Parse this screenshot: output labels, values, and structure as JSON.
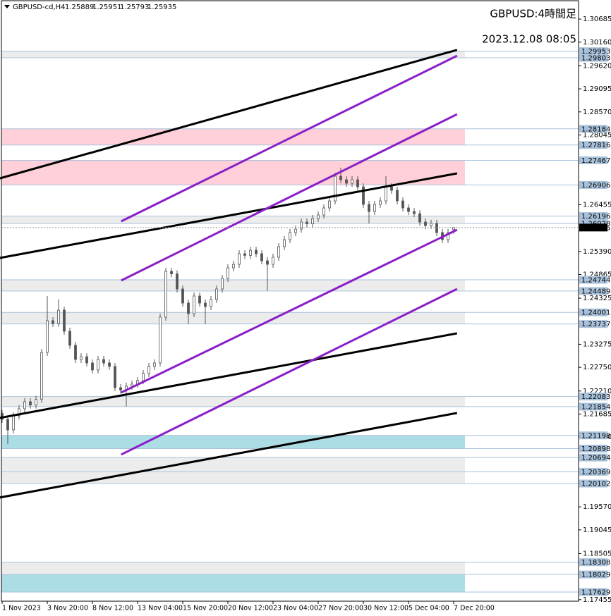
{
  "chart_data": {
    "type": "candlestick",
    "symbol": "GBPUSD-cd,H4",
    "ohlc_header": [
      1.25889,
      1.25951,
      1.25793,
      1.25935
    ],
    "title": "GBPUSD:4時間足",
    "subtitle": "2023.12.08 08:05",
    "categories": [
      "1 Nov 2023",
      null,
      null,
      null,
      null,
      null,
      null,
      null,
      "3 Nov 20:00",
      null,
      null,
      null,
      null,
      null,
      null,
      null,
      "8 Nov 12:00",
      null,
      null,
      null,
      null,
      null,
      null,
      null,
      "13 Nov 04:00",
      null,
      null,
      null,
      null,
      null,
      null,
      null,
      "15 Nov 20:00",
      null,
      null,
      null,
      null,
      null,
      null,
      null,
      "20 Nov 12:00",
      null,
      null,
      null,
      null,
      null,
      null,
      null,
      "23 Nov 04:00",
      null,
      null,
      null,
      null,
      null,
      null,
      null,
      "27 Nov 20:00",
      null,
      null,
      null,
      null,
      null,
      null,
      null,
      "30 Nov 12:00",
      null,
      null,
      null,
      null,
      null,
      null,
      null,
      "5 Dec 04:00",
      null,
      null,
      null,
      null,
      null,
      null,
      null,
      "7 Dec 20:00"
    ],
    "open": [
      1.217,
      1.21565,
      1.21324,
      1.21645,
      1.21805,
      1.21966,
      1.2189,
      1.2202,
      1.2309,
      1.23813,
      1.2375,
      1.24053,
      1.23572,
      1.23251,
      1.22929,
      1.2299,
      1.22849,
      1.22689,
      1.22929,
      1.22849,
      1.22769,
      1.22287,
      1.2223,
      1.2232,
      1.22367,
      1.22448,
      1.22608,
      1.22769,
      1.2285,
      1.23893,
      1.24937,
      1.2488,
      1.24535,
      1.24214,
      1.23973,
      1.24375,
      1.24214,
      1.24134,
      1.24294,
      1.24535,
      1.24776,
      1.25017,
      1.25097,
      1.25338,
      1.253,
      1.25418,
      1.25338,
      1.25177,
      1.25097,
      1.25258,
      1.25499,
      1.25659,
      1.2582,
      1.259,
      1.26061,
      1.2602,
      1.26141,
      1.26221,
      1.26382,
      1.26542,
      1.27104,
      1.27024,
      1.26944,
      1.27024,
      1.26863,
      1.26462,
      1.26301,
      1.26462,
      1.26542,
      1.26863,
      1.26783,
      1.26542,
      1.26382,
      1.26301,
      1.2625,
      1.26061,
      1.2598,
      1.2603,
      1.2582,
      1.25659,
      1.25889
    ],
    "high": [
      1.2178,
      1.21645,
      1.21725,
      1.21885,
      1.22046,
      1.22046,
      1.221,
      1.2317,
      1.24375,
      1.23893,
      1.243,
      1.24133,
      1.23652,
      1.23331,
      1.2307,
      1.2307,
      1.22929,
      1.23009,
      1.23009,
      1.22929,
      1.22849,
      1.22367,
      1.224,
      1.22447,
      1.22528,
      1.22688,
      1.22849,
      1.2293,
      1.23973,
      1.25017,
      1.25017,
      1.2496,
      1.24615,
      1.24294,
      1.24455,
      1.24455,
      1.24294,
      1.24374,
      1.24615,
      1.24856,
      1.25097,
      1.25177,
      1.25418,
      1.25418,
      1.25498,
      1.25498,
      1.25418,
      1.25257,
      1.25338,
      1.25579,
      1.25739,
      1.259,
      1.2598,
      1.26141,
      1.26141,
      1.26221,
      1.26301,
      1.26462,
      1.26622,
      1.27184,
      1.273,
      1.27104,
      1.27104,
      1.27104,
      1.26943,
      1.26542,
      1.26542,
      1.26622,
      1.27104,
      1.26943,
      1.26863,
      1.26622,
      1.26462,
      1.26381,
      1.2633,
      1.26141,
      1.2611,
      1.2611,
      1.259,
      1.259,
      1.25951
    ],
    "low": [
      1.21485,
      1.21,
      1.21244,
      1.21565,
      1.21725,
      1.2181,
      1.2181,
      1.2194,
      1.2301,
      1.2367,
      1.2367,
      1.23492,
      1.23171,
      1.22849,
      1.22849,
      1.22769,
      1.22609,
      1.22609,
      1.22769,
      1.22689,
      1.22207,
      1.2215,
      1.21854,
      1.2224,
      1.22287,
      1.22368,
      1.22528,
      1.22689,
      1.2277,
      1.23813,
      1.248,
      1.24455,
      1.24134,
      1.23737,
      1.23893,
      1.24134,
      1.23737,
      1.24054,
      1.24214,
      1.24455,
      1.24696,
      1.24937,
      1.25017,
      1.2522,
      1.2522,
      1.25258,
      1.25097,
      1.24489,
      1.25017,
      1.25178,
      1.25419,
      1.25579,
      1.2574,
      1.2582,
      1.2594,
      1.2594,
      1.26061,
      1.26141,
      1.26302,
      1.26462,
      1.26944,
      1.26864,
      1.26864,
      1.26783,
      1.26382,
      1.26028,
      1.26221,
      1.26382,
      1.26462,
      1.26703,
      1.26462,
      1.26302,
      1.26221,
      1.2617,
      1.25981,
      1.259,
      1.259,
      1.2574,
      1.25579,
      1.25579,
      1.25793
    ],
    "close": [
      1.21565,
      1.21324,
      1.21645,
      1.21805,
      1.21966,
      1.2189,
      1.2202,
      1.2309,
      1.23813,
      1.2375,
      1.24053,
      1.23572,
      1.23251,
      1.22929,
      1.2299,
      1.22849,
      1.22689,
      1.22929,
      1.22849,
      1.22769,
      1.22287,
      1.2223,
      1.2232,
      1.22367,
      1.22448,
      1.22608,
      1.22769,
      1.2285,
      1.23893,
      1.24937,
      1.2488,
      1.24535,
      1.24214,
      1.23973,
      1.24375,
      1.24214,
      1.24134,
      1.24294,
      1.24535,
      1.24776,
      1.25017,
      1.25097,
      1.25338,
      1.253,
      1.25418,
      1.25338,
      1.25177,
      1.25097,
      1.25258,
      1.25499,
      1.25659,
      1.2582,
      1.259,
      1.26061,
      1.2602,
      1.26141,
      1.26221,
      1.26382,
      1.26542,
      1.27104,
      1.27024,
      1.26944,
      1.27024,
      1.26863,
      1.26462,
      1.26301,
      1.26462,
      1.26542,
      1.26863,
      1.26783,
      1.26542,
      1.26382,
      1.26301,
      1.2625,
      1.26061,
      1.2598,
      1.2603,
      1.2582,
      1.25659,
      1.2582,
      1.25935
    ],
    "ylim": [
      1.1742,
      1.3112
    ],
    "yticks": [
      1.30685,
      {
        "value": 1.3016,
        "label": "1.30160"
      },
      {
        "value": 1.2962,
        "label": "1.29620"
      },
      1.29095,
      {
        "value": 1.2857,
        "label": "1.28570"
      },
      1.28045,
      1.26455,
      {
        "value": 1.2539,
        "label": "1.25390"
      },
      1.24865,
      1.24325,
      1.23275,
      {
        "value": 1.2275,
        "label": "1.22750"
      },
      {
        "value": 1.2221,
        "label": "1.22210"
      },
      1.21685,
      {
        "value": 1.2116,
        "label": "1.21160"
      },
      {
        "value": 1.1957,
        "label": "1.19570"
      },
      1.19045,
      1.18505,
      1.17455
    ],
    "levels": [
      1.29953,
      1.29803,
      1.28184,
      1.27816,
      1.27467,
      1.26906,
      1.26196,
      1.26028,
      1.24744,
      1.24489,
      1.24001,
      1.23737,
      1.22083,
      1.21854,
      1.21198,
      1.20898,
      1.20694,
      1.20369,
      1.20102,
      1.18308,
      1.18029,
      1.17629
    ],
    "current_price": 1.25935,
    "zones": [
      {
        "from": 1.29803,
        "to": 1.29953,
        "color": "#ececec"
      },
      {
        "from": 1.27816,
        "to": 1.28184,
        "color": "#ffd0d9"
      },
      {
        "from": 1.26906,
        "to": 1.27467,
        "color": "#ffd0d9"
      },
      {
        "from": 1.26028,
        "to": 1.26196,
        "color": "#ececec"
      },
      {
        "from": 1.24489,
        "to": 1.24744,
        "color": "#ececec"
      },
      {
        "from": 1.23737,
        "to": 1.24001,
        "color": "#ececec"
      },
      {
        "from": 1.21854,
        "to": 1.22083,
        "color": "#ececec"
      },
      {
        "from": 1.20898,
        "to": 1.21198,
        "color": "#acdde4"
      },
      {
        "from": 1.20369,
        "to": 1.20694,
        "color": "#ececec"
      },
      {
        "from": 1.20102,
        "to": 1.20369,
        "color": "#ececec"
      },
      {
        "from": 1.18029,
        "to": 1.18308,
        "color": "#ececec"
      },
      {
        "from": 1.17629,
        "to": 1.18029,
        "color": "#acdde4"
      }
    ],
    "trendlines": [
      {
        "color": "#000000",
        "x": [
          -0.4,
          80.6
        ],
        "y": [
          1.27056,
          1.29983
        ]
      },
      {
        "color": "#000000",
        "x": [
          -0.4,
          80.6
        ],
        "y": [
          1.25242,
          1.27169
        ]
      },
      {
        "color": "#000000",
        "x": [
          -0.4,
          80.6
        ],
        "y": [
          1.21597,
          1.23524
        ]
      },
      {
        "color": "#000000",
        "x": [
          -0.4,
          80.6
        ],
        "y": [
          1.19783,
          1.21709
        ]
      },
      {
        "color": "#8a1fc8",
        "x": [
          21.1,
          80.6
        ],
        "y": [
          1.26077,
          1.2985
        ]
      },
      {
        "color": "#8a1fc8",
        "x": [
          21.1,
          80.6
        ],
        "y": [
          1.24728,
          1.28517
        ]
      },
      {
        "color": "#8a1fc8",
        "x": [
          21.1,
          80.6
        ],
        "y": [
          1.22175,
          1.25884
        ]
      },
      {
        "color": "#8a1fc8",
        "x": [
          21.1,
          80.6
        ],
        "y": [
          1.20762,
          1.24535
        ]
      }
    ]
  }
}
